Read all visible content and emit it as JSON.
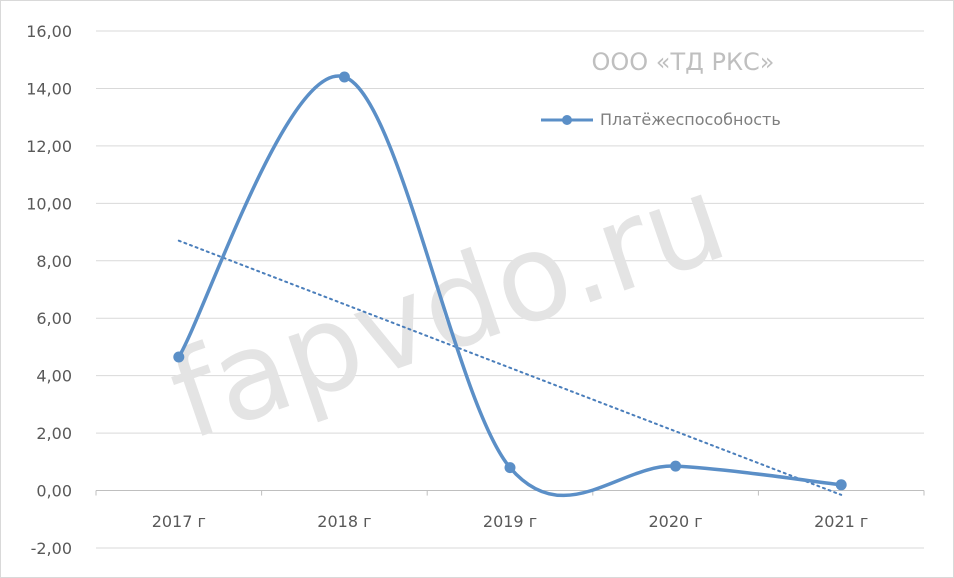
{
  "chart_data": {
    "type": "line",
    "title": "ООО «ТД РКС»",
    "categories": [
      "2017 г",
      "2018 г",
      "2019 г",
      "2020 г",
      "2021 г"
    ],
    "series": [
      {
        "name": "Платёжеспособность",
        "values": [
          4.65,
          14.4,
          0.8,
          0.85,
          0.2
        ],
        "color": "#5b8fc7",
        "smooth": true
      }
    ],
    "trendline": {
      "type": "linear",
      "style": "dotted",
      "color": "#4a7ebb",
      "start": 8.7,
      "end": -0.15
    },
    "ylim": [
      -2,
      16
    ],
    "yticks": [
      "-2,00",
      "0,00",
      "2,00",
      "4,00",
      "6,00",
      "8,00",
      "10,00",
      "12,00",
      "14,00",
      "16,00"
    ],
    "ytick_values": [
      -2,
      0,
      2,
      4,
      6,
      8,
      10,
      12,
      14,
      16
    ],
    "grid": true,
    "legend_position": "top-right",
    "xlabel": "",
    "ylabel": ""
  },
  "watermark": "fapvdo.ru"
}
